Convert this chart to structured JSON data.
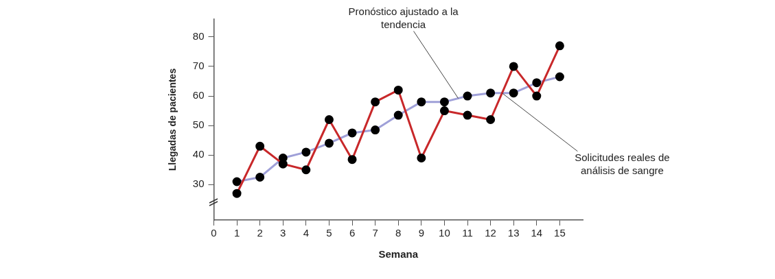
{
  "chart_data": {
    "type": "line",
    "xlabel": "Semana",
    "ylabel": "Llegadas de pacientes",
    "x": [
      1,
      2,
      3,
      4,
      5,
      6,
      7,
      8,
      9,
      10,
      11,
      12,
      13,
      14,
      15
    ],
    "series": [
      {
        "name": "Solicitudes reales de análisis de sangre",
        "color": "#c8282a",
        "values": [
          27,
          43,
          37,
          35,
          52,
          38.5,
          58,
          62,
          39,
          55,
          53.5,
          52,
          70,
          60,
          77
        ]
      },
      {
        "name": "Pronóstico ajustado a la tendencia",
        "color": "#9fa0d8",
        "values": [
          31,
          32.5,
          39,
          41,
          44,
          47.5,
          48.5,
          53.5,
          58,
          58,
          60,
          61,
          61,
          64.5,
          66.5
        ]
      }
    ],
    "xlim": [
      0,
      16
    ],
    "xticks": [
      0,
      1,
      2,
      3,
      4,
      5,
      6,
      7,
      8,
      9,
      10,
      11,
      12,
      13,
      14,
      15
    ],
    "ylim": [
      18,
      86
    ],
    "yticks": [
      30,
      40,
      50,
      60,
      70,
      80
    ],
    "grid": false,
    "legend": false,
    "marker": "circle",
    "line_style": "solid"
  }
}
